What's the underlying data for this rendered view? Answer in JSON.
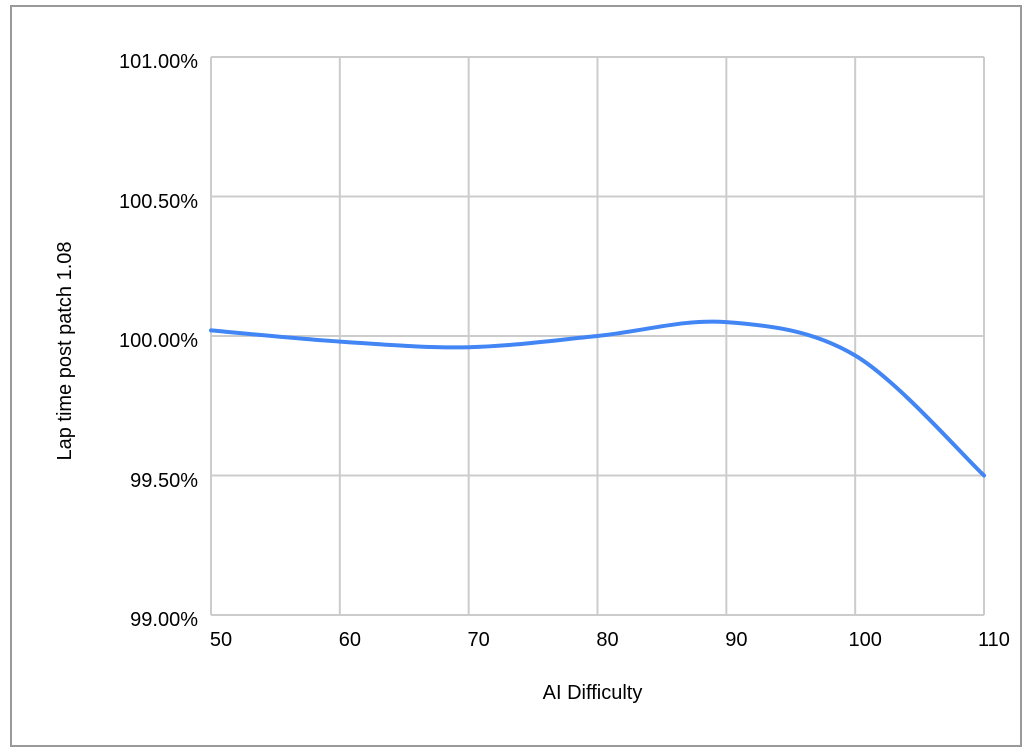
{
  "chart_data": {
    "type": "line",
    "title": "",
    "xlabel": "AI Difficulty",
    "ylabel": "Lap time post patch 1.08",
    "x": [
      50,
      60,
      70,
      80,
      90,
      100,
      110
    ],
    "series": [
      {
        "name": "Lap time post patch 1.08",
        "values": [
          100.02,
          99.98,
          99.96,
          100.0,
          100.05,
          99.93,
          99.5
        ]
      }
    ],
    "xlim": [
      50,
      110
    ],
    "ylim": [
      99.0,
      101.0
    ],
    "xticks": [
      50,
      60,
      70,
      80,
      90,
      100,
      110
    ],
    "xtick_labels": [
      "50",
      "60",
      "70",
      "80",
      "90",
      "100",
      "110"
    ],
    "yticks": [
      99.0,
      99.5,
      100.0,
      100.5,
      101.0
    ],
    "ytick_labels": [
      "99.00%",
      "99.50%",
      "100.00%",
      "100.50%",
      "101.00%"
    ],
    "grid": true,
    "legend_position": "none",
    "smooth": true,
    "colors": {
      "line": "#4285f4",
      "grid": "#cccccc",
      "text": "#000000",
      "frame_border": "#999999",
      "background": "#ffffff"
    }
  }
}
